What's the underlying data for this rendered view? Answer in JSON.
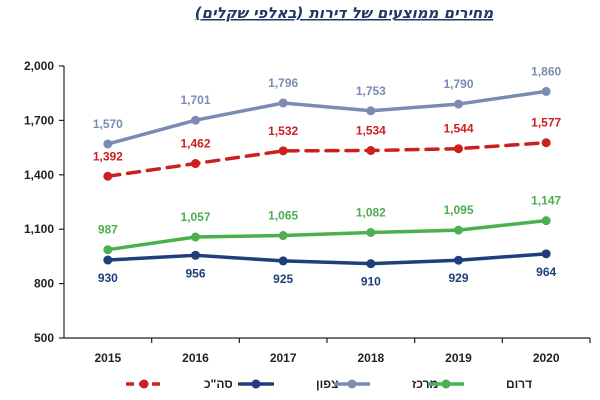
{
  "chart_data": {
    "type": "line",
    "title": "מחירים ממוצעים של דירות (באלפי שקלים)",
    "xlabel": "",
    "ylabel": "",
    "categories": [
      "2015",
      "2016",
      "2017",
      "2018",
      "2019",
      "2020"
    ],
    "y_ticks": [
      "500",
      "800",
      "1,100",
      "1,400",
      "1,700",
      "2,000"
    ],
    "ylim": [
      500,
      2000
    ],
    "grid": false,
    "legend_position": "bottom",
    "series": [
      {
        "key": "total",
        "name": "סה\"כ",
        "color": "#cc1f1f",
        "dashed": true,
        "values": [
          1392,
          1462,
          1532,
          1534,
          1544,
          1577
        ],
        "labels": [
          "1,392",
          "1,462",
          "1,532",
          "1,534",
          "1,544",
          "1,577"
        ],
        "label_position": "above"
      },
      {
        "key": "north",
        "name": "צפון",
        "color": "#1f3e7a",
        "dashed": false,
        "values": [
          930,
          956,
          925,
          910,
          929,
          964
        ],
        "labels": [
          "930",
          "956",
          "925",
          "910",
          "929",
          "964"
        ],
        "label_position": "below"
      },
      {
        "key": "center",
        "name": "מרכז",
        "color": "#7b8bb3",
        "dashed": false,
        "values": [
          1570,
          1701,
          1796,
          1753,
          1790,
          1860
        ],
        "labels": [
          "1,570",
          "1,701",
          "1,796",
          "1,753",
          "1,790",
          "1,860"
        ],
        "label_position": "above"
      },
      {
        "key": "south",
        "name": "דרום",
        "color": "#4caf50",
        "dashed": false,
        "values": [
          987,
          1057,
          1065,
          1082,
          1095,
          1147
        ],
        "labels": [
          "987",
          "1,057",
          "1,065",
          "1,082",
          "1,095",
          "1,147"
        ],
        "label_position": "above"
      }
    ],
    "legend_order": [
      "total",
      "north",
      "center",
      "south"
    ]
  }
}
